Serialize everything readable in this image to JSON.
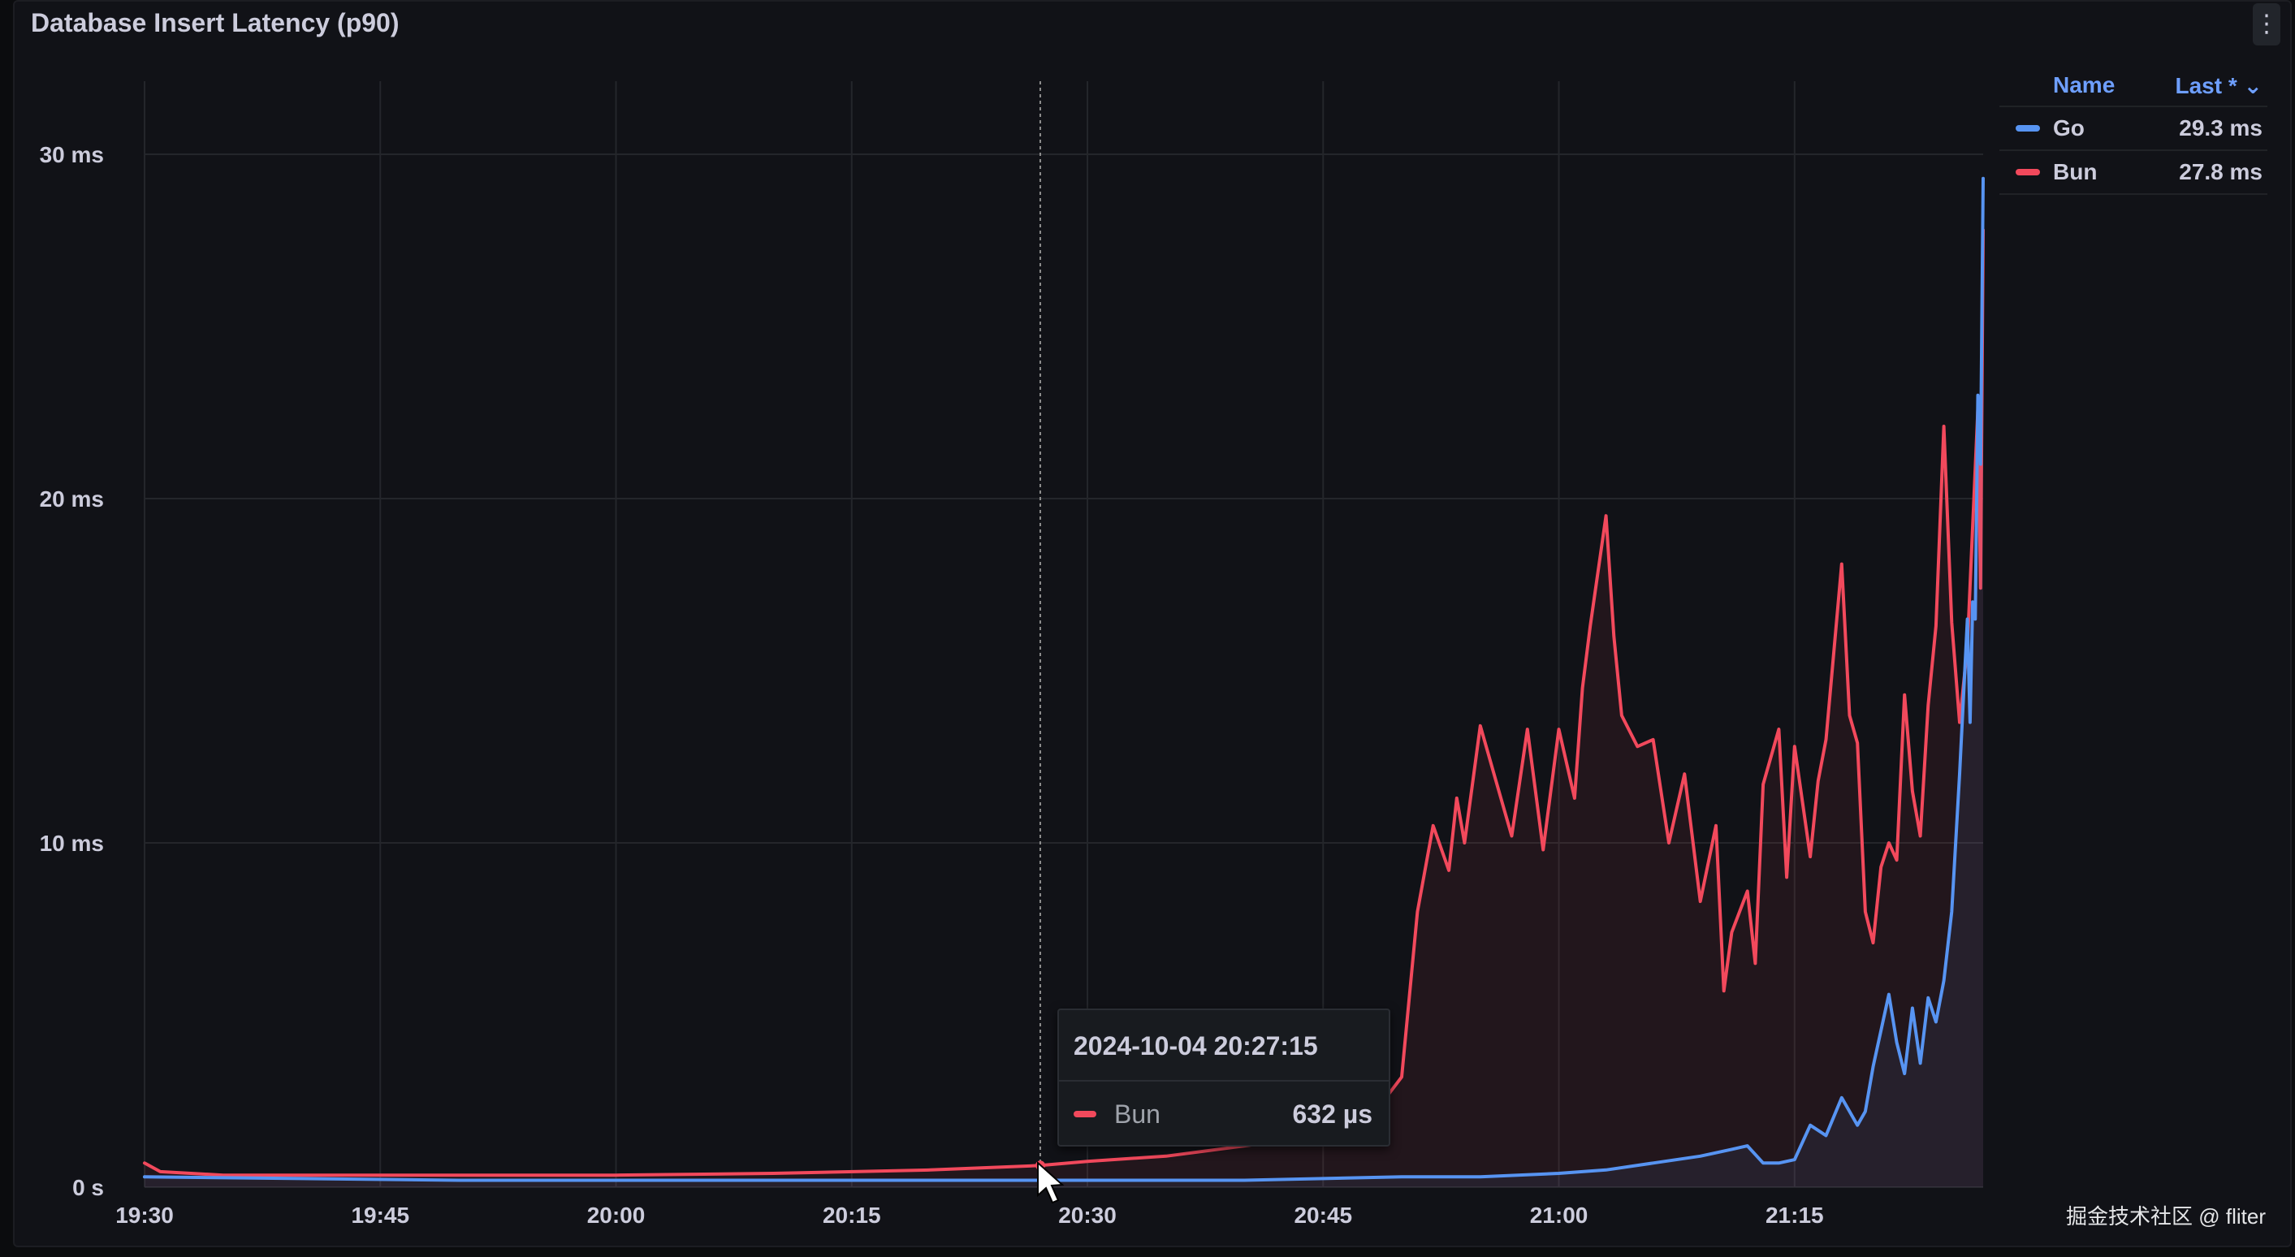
{
  "panel": {
    "title": "Database Insert Latency (p90)",
    "menu_icon": "kebab-menu-icon"
  },
  "legend": {
    "name_header": "Name",
    "last_header": "Last * ⌄",
    "items": [
      {
        "name": "Go",
        "value": "29.3 ms",
        "color": "#5794f2"
      },
      {
        "name": "Bun",
        "value": "27.8 ms",
        "color": "#f2495c"
      }
    ]
  },
  "tooltip": {
    "time": "2024-10-04 20:27:15",
    "series": "Bun",
    "value": "632 µs",
    "color": "#f2495c"
  },
  "watermark": "掘金技术社区 @ fliter",
  "chart_data": {
    "type": "line",
    "title": "Database Insert Latency (p90)",
    "xlabel": "",
    "ylabel": "",
    "y_unit": "ms",
    "ylim": [
      0,
      30
    ],
    "yticks": [
      0,
      10,
      20,
      30
    ],
    "ytick_labels": [
      "0 s",
      "10 ms",
      "20 ms",
      "30 ms"
    ],
    "xlim": [
      "19:30",
      "21:27"
    ],
    "xticks": [
      "19:30",
      "19:45",
      "20:00",
      "20:15",
      "20:30",
      "20:45",
      "21:00",
      "21:15"
    ],
    "grid": true,
    "legend_position": "right",
    "hover_time": "20:27",
    "series": [
      {
        "name": "Go",
        "color": "#5794f2",
        "points": [
          [
            "19:30",
            0.3
          ],
          [
            "19:40",
            0.25
          ],
          [
            "19:50",
            0.2
          ],
          [
            "20:00",
            0.2
          ],
          [
            "20:10",
            0.2
          ],
          [
            "20:20",
            0.2
          ],
          [
            "20:30",
            0.2
          ],
          [
            "20:40",
            0.2
          ],
          [
            "20:45",
            0.25
          ],
          [
            "20:50",
            0.3
          ],
          [
            "20:55",
            0.3
          ],
          [
            "21:00",
            0.4
          ],
          [
            "21:03",
            0.5
          ],
          [
            "21:06",
            0.7
          ],
          [
            "21:09",
            0.9
          ],
          [
            "21:11",
            1.1
          ],
          [
            "21:12",
            1.2
          ],
          [
            "21:13",
            0.7
          ],
          [
            "21:14",
            0.7
          ],
          [
            "21:15",
            0.8
          ],
          [
            "21:16",
            1.8
          ],
          [
            "21:17",
            1.5
          ],
          [
            "21:18",
            2.6
          ],
          [
            "21:19",
            1.8
          ],
          [
            "21:19:30",
            2.2
          ],
          [
            "21:20",
            3.5
          ],
          [
            "21:21",
            5.6
          ],
          [
            "21:21:30",
            4.2
          ],
          [
            "21:22",
            3.3
          ],
          [
            "21:22:30",
            5.2
          ],
          [
            "21:23",
            3.6
          ],
          [
            "21:23:30",
            5.5
          ],
          [
            "21:24",
            4.8
          ],
          [
            "21:24:30",
            6.0
          ],
          [
            "21:25",
            8.0
          ],
          [
            "21:25:30",
            12.0
          ],
          [
            "21:26",
            16.5
          ],
          [
            "21:26:10",
            13.5
          ],
          [
            "21:26:20",
            17.0
          ],
          [
            "21:26:30",
            16.5
          ],
          [
            "21:26:40",
            23.0
          ],
          [
            "21:26:50",
            21.0
          ],
          [
            "21:27",
            29.3
          ]
        ]
      },
      {
        "name": "Bun",
        "color": "#f2495c",
        "points": [
          [
            "19:30",
            0.7
          ],
          [
            "19:31",
            0.45
          ],
          [
            "19:35",
            0.35
          ],
          [
            "19:45",
            0.35
          ],
          [
            "20:00",
            0.35
          ],
          [
            "20:10",
            0.4
          ],
          [
            "20:20",
            0.5
          ],
          [
            "20:27",
            0.63
          ],
          [
            "20:30",
            0.75
          ],
          [
            "20:35",
            0.9
          ],
          [
            "20:40",
            1.2
          ],
          [
            "20:45",
            1.5
          ],
          [
            "20:48",
            2.0
          ],
          [
            "20:50",
            3.2
          ],
          [
            "20:51",
            8.0
          ],
          [
            "20:52",
            10.5
          ],
          [
            "20:53",
            9.2
          ],
          [
            "20:53:30",
            11.3
          ],
          [
            "20:54",
            10.0
          ],
          [
            "20:55",
            13.4
          ],
          [
            "20:56",
            11.8
          ],
          [
            "20:57",
            10.2
          ],
          [
            "20:58",
            13.3
          ],
          [
            "20:59",
            9.8
          ],
          [
            "21:00",
            13.3
          ],
          [
            "21:01",
            11.3
          ],
          [
            "21:01:30",
            14.5
          ],
          [
            "21:02",
            16.3
          ],
          [
            "21:03",
            19.5
          ],
          [
            "21:03:30",
            16.0
          ],
          [
            "21:04",
            13.7
          ],
          [
            "21:05",
            12.8
          ],
          [
            "21:06",
            13.0
          ],
          [
            "21:07",
            10.0
          ],
          [
            "21:08",
            12.0
          ],
          [
            "21:09",
            8.3
          ],
          [
            "21:10",
            10.5
          ],
          [
            "21:10:30",
            5.7
          ],
          [
            "21:11",
            7.4
          ],
          [
            "21:12",
            8.6
          ],
          [
            "21:12:30",
            6.5
          ],
          [
            "21:13",
            11.7
          ],
          [
            "21:14",
            13.3
          ],
          [
            "21:14:30",
            9.0
          ],
          [
            "21:15",
            12.8
          ],
          [
            "21:16",
            9.6
          ],
          [
            "21:16:30",
            11.8
          ],
          [
            "21:17",
            13.0
          ],
          [
            "21:18",
            18.1
          ],
          [
            "21:18:30",
            13.7
          ],
          [
            "21:19",
            12.9
          ],
          [
            "21:19:30",
            8.0
          ],
          [
            "21:20",
            7.1
          ],
          [
            "21:20:30",
            9.3
          ],
          [
            "21:21",
            10.0
          ],
          [
            "21:21:30",
            9.5
          ],
          [
            "21:22",
            14.3
          ],
          [
            "21:22:30",
            11.5
          ],
          [
            "21:23",
            10.2
          ],
          [
            "21:23:30",
            14.0
          ],
          [
            "21:24",
            16.3
          ],
          [
            "21:24:30",
            22.1
          ],
          [
            "21:25",
            16.4
          ],
          [
            "21:25:30",
            13.5
          ],
          [
            "21:26",
            15.7
          ],
          [
            "21:26:20",
            19.2
          ],
          [
            "21:26:40",
            22.6
          ],
          [
            "21:26:50",
            17.4
          ],
          [
            "21:27",
            27.8
          ]
        ]
      }
    ]
  }
}
